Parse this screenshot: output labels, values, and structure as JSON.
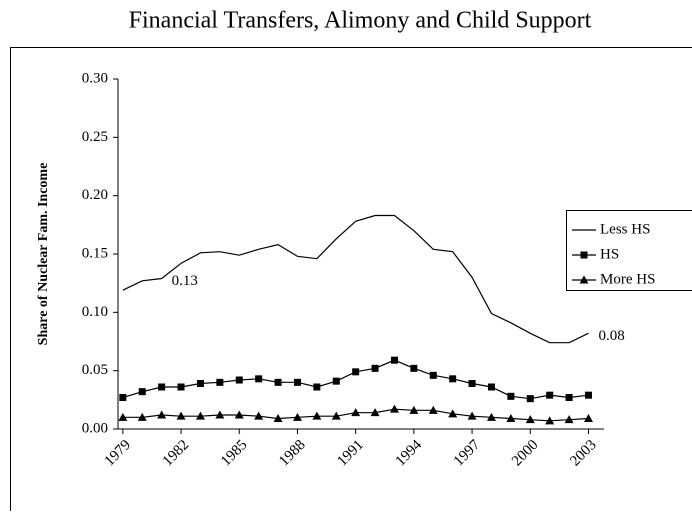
{
  "chart_data": {
    "type": "line",
    "title": "Financial Transfers, Alimony and Child Support",
    "y_label": "Share of Nuclear Fam. Income",
    "x": [
      1979,
      1980,
      1981,
      1982,
      1983,
      1984,
      1985,
      1986,
      1987,
      1988,
      1989,
      1990,
      1991,
      1992,
      1993,
      1994,
      1995,
      1996,
      1997,
      1998,
      1999,
      2000,
      2001,
      2002,
      2003
    ],
    "xlim": [
      1978.75,
      2003.8
    ],
    "xticks": [
      1979,
      1982,
      1985,
      1988,
      1991,
      1994,
      1997,
      2000,
      2003
    ],
    "ylim": [
      0,
      0.3
    ],
    "yticks": [
      {
        "value": 0,
        "label": "0.00"
      },
      {
        "value": 0.05,
        "label": "0.05"
      },
      {
        "value": 0.1,
        "label": "0.10"
      },
      {
        "value": 0.15,
        "label": "0.15"
      },
      {
        "value": 0.2,
        "label": "0.20"
      },
      {
        "value": 0.25,
        "label": "0.25"
      },
      {
        "value": 0.3,
        "label": "0.30"
      }
    ],
    "series": [
      {
        "name": "Less HS",
        "color": "#000000",
        "marker": "none",
        "values": [
          0.119,
          0.127,
          0.129,
          0.142,
          0.151,
          0.152,
          0.149,
          0.154,
          0.158,
          0.148,
          0.146,
          0.163,
          0.178,
          0.183,
          0.183,
          0.17,
          0.154,
          0.152,
          0.13,
          0.099,
          0.091,
          0.082,
          0.074,
          0.074,
          0.082
        ]
      },
      {
        "name": "HS",
        "color": "#000000",
        "marker": "square",
        "values": [
          0.027,
          0.032,
          0.036,
          0.036,
          0.039,
          0.04,
          0.042,
          0.043,
          0.04,
          0.04,
          0.036,
          0.041,
          0.049,
          0.052,
          0.059,
          0.052,
          0.046,
          0.043,
          0.039,
          0.036,
          0.028,
          0.026,
          0.029,
          0.027,
          0.029
        ]
      },
      {
        "name": "More HS",
        "color": "#000000",
        "marker": "triangle",
        "values": [
          0.01,
          0.01,
          0.012,
          0.011,
          0.011,
          0.012,
          0.012,
          0.011,
          0.009,
          0.01,
          0.011,
          0.011,
          0.014,
          0.014,
          0.017,
          0.016,
          0.016,
          0.013,
          0.011,
          0.01,
          0.009,
          0.008,
          0.007,
          0.008,
          0.009
        ]
      }
    ],
    "annotations": [
      {
        "text": "0.13",
        "series": 0,
        "index": 2
      },
      {
        "text": "0.08",
        "series": 0,
        "index": 24
      }
    ]
  }
}
